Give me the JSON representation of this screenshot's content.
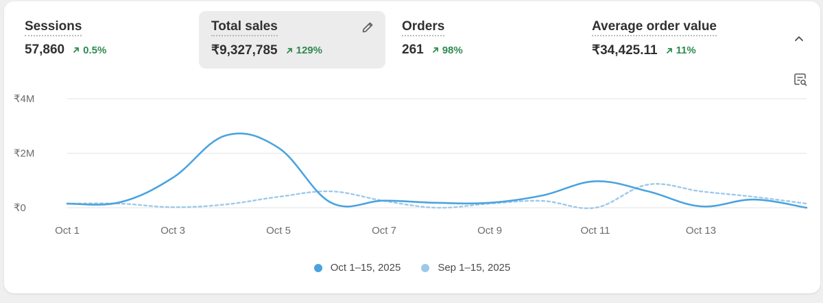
{
  "metrics": [
    {
      "label": "Sessions",
      "value": "57,860",
      "delta": "0.5%"
    },
    {
      "label": "Total sales",
      "value": "₹9,327,785",
      "delta": "129%"
    },
    {
      "label": "Orders",
      "value": "261",
      "delta": "98%"
    },
    {
      "label": "Average order value",
      "value": "₹34,425.11",
      "delta": "11%"
    }
  ],
  "colors": {
    "current": "#4aa3df",
    "previous": "#9cc9ea",
    "positive": "#2e8a4f",
    "grid": "#e3e3e3"
  },
  "icons": {
    "edit": "pencil-icon",
    "collapse": "chevron-up-icon",
    "explore": "chart-explore-icon",
    "delta": "arrow-up-right-icon",
    "legend": "dot"
  },
  "chart_data": {
    "type": "line",
    "x": [
      "Oct 1",
      "Oct 2",
      "Oct 3",
      "Oct 4",
      "Oct 5",
      "Oct 6",
      "Oct 7",
      "Oct 8",
      "Oct 9",
      "Oct 10",
      "Oct 11",
      "Oct 12",
      "Oct 13",
      "Oct 14",
      "Oct 15"
    ],
    "tick_labels": [
      "Oct 1",
      "Oct 3",
      "Oct 5",
      "Oct 7",
      "Oct 9",
      "Oct 11",
      "Oct 13"
    ],
    "y_tick_labels": [
      "₹0",
      "₹2M",
      "₹4M"
    ],
    "ylim": [
      0,
      4000000
    ],
    "grid": true,
    "legend": "bottom-center",
    "series": [
      {
        "name": "Oct 1–15, 2025",
        "style": "solid",
        "values": [
          150000,
          200000,
          1100000,
          2650000,
          2200000,
          180000,
          260000,
          180000,
          180000,
          450000,
          970000,
          600000,
          50000,
          300000,
          0
        ]
      },
      {
        "name": "Sep 1–15, 2025",
        "style": "dashed",
        "values": [
          150000,
          150000,
          20000,
          120000,
          400000,
          600000,
          250000,
          0,
          150000,
          250000,
          0,
          850000,
          600000,
          400000,
          150000
        ]
      }
    ]
  }
}
